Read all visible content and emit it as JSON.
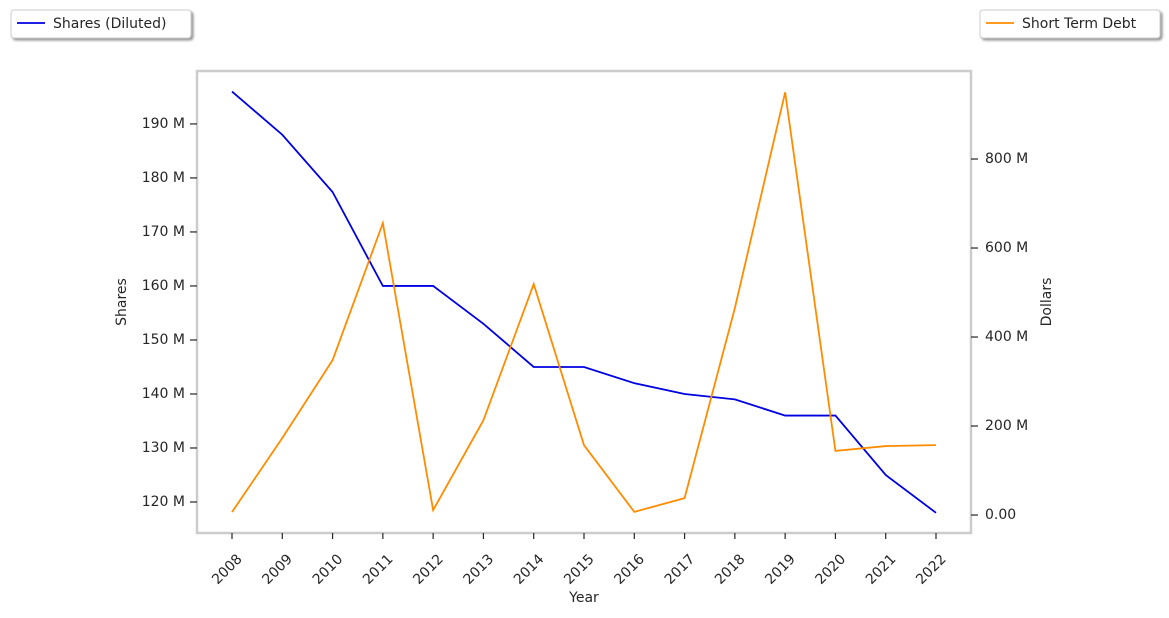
{
  "chart_data": {
    "type": "line",
    "categories": [
      "2008",
      "2009",
      "2010",
      "2011",
      "2012",
      "2013",
      "2014",
      "2015",
      "2016",
      "2017",
      "2018",
      "2019",
      "2020",
      "2021",
      "2022"
    ],
    "x_label": "Year",
    "y_label": "Shares",
    "y2_label": "Dollars",
    "ylim": [
      114260000,
      199800000
    ],
    "yticks": [
      {
        "value": 120000000,
        "label": "120 M"
      },
      {
        "value": 130000000,
        "label": "130 M"
      },
      {
        "value": 140000000,
        "label": "140 M"
      },
      {
        "value": 150000000,
        "label": "150 M"
      },
      {
        "value": 160000000,
        "label": "160 M"
      },
      {
        "value": 170000000,
        "label": "170 M"
      },
      {
        "value": 180000000,
        "label": "180 M"
      },
      {
        "value": 190000000,
        "label": "190 M"
      }
    ],
    "y2lim": [
      -40400000,
      997800000
    ],
    "y2ticks": [
      {
        "value": 0,
        "label": "0.00"
      },
      {
        "value": 200000000,
        "label": "200 M"
      },
      {
        "value": 400000000,
        "label": "400 M"
      },
      {
        "value": 600000000,
        "label": "600 M"
      },
      {
        "value": 800000000,
        "label": "800 M"
      }
    ],
    "series": [
      {
        "name": "Shares (Diluted)",
        "color": "#0000e0",
        "axis": "y",
        "legend": "upper left",
        "values": [
          196000000,
          188000000,
          177400000,
          160000000,
          160000000,
          153000000,
          145000000,
          145000000,
          142000000,
          140000000,
          139000000,
          136000000,
          136000000,
          125000000,
          118000000
        ]
      },
      {
        "name": "Short Term Debt",
        "color": "#ff8c00",
        "axis": "y2",
        "legend": "upper right",
        "values": [
          6700000,
          173000000,
          348000000,
          656000000,
          11000000,
          213000000,
          519000000,
          157000000,
          7000000,
          38000000,
          465000000,
          950000000,
          144000000,
          155000000,
          157000000
        ]
      }
    ]
  }
}
